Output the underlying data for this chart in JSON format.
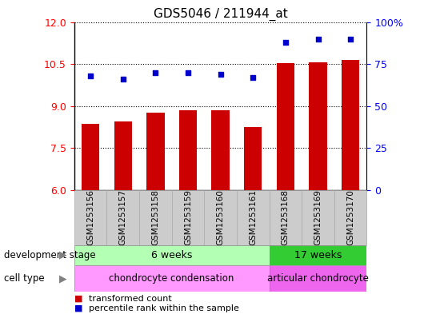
{
  "title": "GDS5046 / 211944_at",
  "samples": [
    "GSM1253156",
    "GSM1253157",
    "GSM1253158",
    "GSM1253159",
    "GSM1253160",
    "GSM1253161",
    "GSM1253168",
    "GSM1253169",
    "GSM1253170"
  ],
  "bar_values": [
    8.35,
    8.45,
    8.75,
    8.85,
    8.85,
    8.25,
    10.52,
    10.55,
    10.65
  ],
  "percentile_values": [
    68,
    66,
    70,
    70,
    69,
    67,
    88,
    90,
    90
  ],
  "ylim_left": [
    6,
    12
  ],
  "ylim_right": [
    0,
    100
  ],
  "yticks_left": [
    6,
    7.5,
    9,
    10.5,
    12
  ],
  "yticks_right": [
    0,
    25,
    50,
    75,
    100
  ],
  "bar_color": "#cc0000",
  "dot_color": "#0000cc",
  "background_plot": "#ffffff",
  "development_stage_label": "development stage",
  "cell_type_label": "cell type",
  "group1_stage": "6 weeks",
  "group2_stage": "17 weeks",
  "group1_cell": "chondrocyte condensation",
  "group2_cell": "articular chondrocyte",
  "group1_count": 6,
  "group2_count": 3,
  "legend_bar_label": "transformed count",
  "legend_dot_label": "percentile rank within the sample",
  "stage_color_light": "#b3ffb3",
  "stage_color_dark": "#33cc33",
  "cell_color_light": "#ff99ff",
  "cell_color_dark": "#ee66ee",
  "xtick_gray": "#cccccc",
  "xtick_gray_border": "#aaaaaa"
}
